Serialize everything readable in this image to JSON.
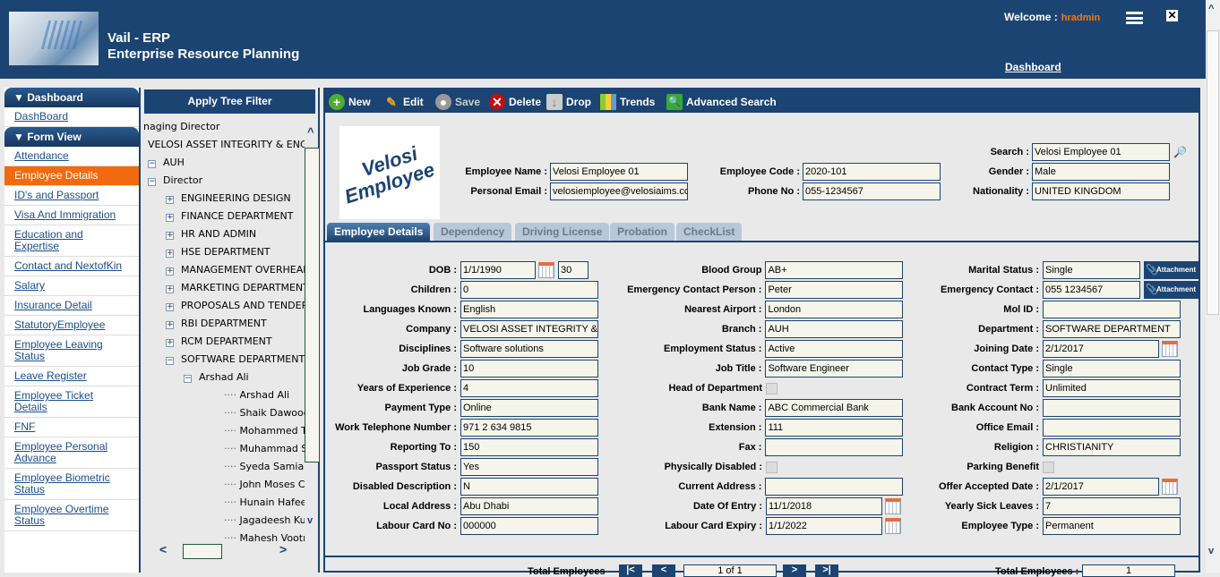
{
  "header": {
    "title": "Vail - ERP",
    "subtitle": "Enterprise Resource Planning",
    "welcome": "Welcome :",
    "user": "hradmin",
    "dashboard_link": "Dashboard"
  },
  "sidebar": {
    "section1": "▼ Dashboard",
    "items1": [
      "DashBoard"
    ],
    "section2": "▼ Form View",
    "items2": [
      "Attendance",
      "Employee Details",
      "ID's and Passport",
      "Visa And Immigration",
      "Education and Expertise",
      "Contact and NextofKin",
      "Salary",
      "Insurance Detail",
      "StatutoryEmployee",
      "Employee Leaving Status",
      "Leave Register",
      "Employee Ticket Details",
      "FNF",
      "Employee Personal Advance",
      "Employee Biometric Status",
      "Employee Overtime Status"
    ],
    "active": "Employee Details"
  },
  "tree": {
    "filter_button": "Apply Tree Filter",
    "nodes": [
      {
        "label": "naging Director",
        "level": 0,
        "box": ""
      },
      {
        "label": "VELOSI ASSET INTEGRITY & ENGINEERING",
        "level": 0,
        "box": ""
      },
      {
        "label": "AUH",
        "level": 1,
        "box": "-"
      },
      {
        "label": "Director",
        "level": 2,
        "box": "-"
      },
      {
        "label": "ENGINEERING DESIGN",
        "level": 3,
        "box": "+"
      },
      {
        "label": "FINANCE DEPARTMENT",
        "level": 3,
        "box": "+"
      },
      {
        "label": "HR AND ADMIN",
        "level": 3,
        "box": "+"
      },
      {
        "label": "HSE DEPARTMENT",
        "level": 3,
        "box": "+"
      },
      {
        "label": "MANAGEMENT OVERHEAD",
        "level": 3,
        "box": "+"
      },
      {
        "label": "MARKETING DEPARTMENT",
        "level": 3,
        "box": "+"
      },
      {
        "label": "PROPOSALS AND TENDERS",
        "level": 3,
        "box": "+"
      },
      {
        "label": "RBI DEPARTMENT",
        "level": 3,
        "box": "+"
      },
      {
        "label": "RCM DEPARTMENT",
        "level": 3,
        "box": "+"
      },
      {
        "label": "SOFTWARE DEPARTMENT",
        "level": 3,
        "box": "-"
      },
      {
        "label": "Arshad Ali",
        "level": 4,
        "box": "-"
      },
      {
        "label": "Arshad Ali",
        "level": 5,
        "box": ""
      },
      {
        "label": "Shaik Dawood",
        "level": 5,
        "box": ""
      },
      {
        "label": "Mohammed Ta",
        "level": 5,
        "box": ""
      },
      {
        "label": "Muhammad S",
        "level": 5,
        "box": ""
      },
      {
        "label": "Syeda Samia",
        "level": 5,
        "box": ""
      },
      {
        "label": "John Moses C",
        "level": 5,
        "box": ""
      },
      {
        "label": "Hunain Hafeez",
        "level": 5,
        "box": ""
      },
      {
        "label": "Jagadeesh Ku",
        "level": 5,
        "box": ""
      },
      {
        "label": "Mahesh Vootn",
        "level": 5,
        "box": ""
      }
    ]
  },
  "toolbar": {
    "new": "New",
    "edit": "Edit",
    "save": "Save",
    "delete": "Delete",
    "drop": "Drop",
    "trends": "Trends",
    "advanced_search": "Advanced Search"
  },
  "photo": {
    "line1": "Velosi",
    "line2": "Employee"
  },
  "head": {
    "employee_name_label": "Employee Name :",
    "employee_name": "Velosi Employee 01",
    "personal_email_label": "Personal Email :",
    "personal_email": "velosiemployee@velosiaims.com",
    "employee_code_label": "Employee Code :",
    "employee_code": "2020-101",
    "phone_label": "Phone No :",
    "phone": "055-1234567",
    "search_label": "Search :",
    "search": "Velosi Employee 01",
    "gender_label": "Gender :",
    "gender": "Male",
    "nationality_label": "Nationality :",
    "nationality": "UNITED KINGDOM"
  },
  "tabs": [
    "Employee Details",
    "Dependency",
    "Driving License",
    "Probation",
    "CheckList"
  ],
  "attachment_label": "Attachment",
  "form": [
    [
      {
        "l": "DOB :",
        "v": "1/1/1990",
        "t": "date",
        "extra": "30"
      },
      {
        "l": "Blood Group",
        "v": "AB+"
      },
      {
        "l": "Marital Status :",
        "v": "Single",
        "t": "att"
      }
    ],
    [
      {
        "l": "Children :",
        "v": "0"
      },
      {
        "l": "Emergency Contact Person :",
        "v": "Peter"
      },
      {
        "l": "Emergency Contact :",
        "v": "055 1234567",
        "t": "att"
      }
    ],
    [
      {
        "l": "Languages Known :",
        "v": "English"
      },
      {
        "l": "Nearest Airport :",
        "v": "London"
      },
      {
        "l": "Mol ID :",
        "v": ""
      }
    ],
    [
      {
        "l": "Company :",
        "v": "VELOSI ASSET INTEGRITY &"
      },
      {
        "l": "Branch :",
        "v": "AUH"
      },
      {
        "l": "Department :",
        "v": "SOFTWARE DEPARTMENT"
      }
    ],
    [
      {
        "l": "Disciplines :",
        "v": "Software solutions"
      },
      {
        "l": "Employment Status :",
        "v": "Active"
      },
      {
        "l": "Joining Date :",
        "v": "2/1/2017",
        "t": "date"
      }
    ],
    [
      {
        "l": "Job Grade :",
        "v": "10"
      },
      {
        "l": "Job Title :",
        "v": "Software Engineer"
      },
      {
        "l": "Contact Type :",
        "v": "Single"
      }
    ],
    [
      {
        "l": "Years of Experience :",
        "v": "4"
      },
      {
        "l": "Head of Department",
        "v": "",
        "t": "chk"
      },
      {
        "l": "Contract Term :",
        "v": "Unlimited"
      }
    ],
    [
      {
        "l": "Payment Type :",
        "v": "Online"
      },
      {
        "l": "Bank Name :",
        "v": "ABC Commercial Bank"
      },
      {
        "l": "Bank Account No :",
        "v": ""
      }
    ],
    [
      {
        "l": "Work Telephone Number :",
        "v": "971 2 634 9815"
      },
      {
        "l": "Extension :",
        "v": "111"
      },
      {
        "l": "Office Email :",
        "v": ""
      }
    ],
    [
      {
        "l": "Reporting To :",
        "v": "150"
      },
      {
        "l": "Fax :",
        "v": ""
      },
      {
        "l": "Religion :",
        "v": "CHRISTIANITY"
      }
    ],
    [
      {
        "l": "Passport Status :",
        "v": "Yes"
      },
      {
        "l": "Physically Disabled :",
        "v": "",
        "t": "chk"
      },
      {
        "l": "Parking Benefit",
        "v": "",
        "t": "chk"
      }
    ],
    [
      {
        "l": "Disabled Description :",
        "v": "N"
      },
      {
        "l": "Current Address :",
        "v": ""
      },
      {
        "l": "Offer Accepted Date :",
        "v": "2/1/2017",
        "t": "date"
      }
    ],
    [
      {
        "l": "Local Address :",
        "v": "Abu Dhabi"
      },
      {
        "l": "Date Of Entry :",
        "v": "11/1/2018",
        "t": "date"
      },
      {
        "l": "Yearly Sick Leaves :",
        "v": "7"
      }
    ],
    [
      {
        "l": "Labour Card No :",
        "v": "000000"
      },
      {
        "l": "Labour Card Expiry :",
        "v": "1/1/2022",
        "t": "date"
      },
      {
        "l": "Employee Type :",
        "v": "Permanent"
      }
    ]
  ],
  "pager": {
    "label": "Total Employees",
    "first": "|<",
    "prev": "<",
    "page": "1 of 1",
    "next": ">",
    "last": ">|",
    "total_label": "Total Employees :",
    "total": "1"
  },
  "colors": {
    "primary": "#1c4472",
    "accent": "#f26a10",
    "input_bg": "#f5f5ec"
  }
}
